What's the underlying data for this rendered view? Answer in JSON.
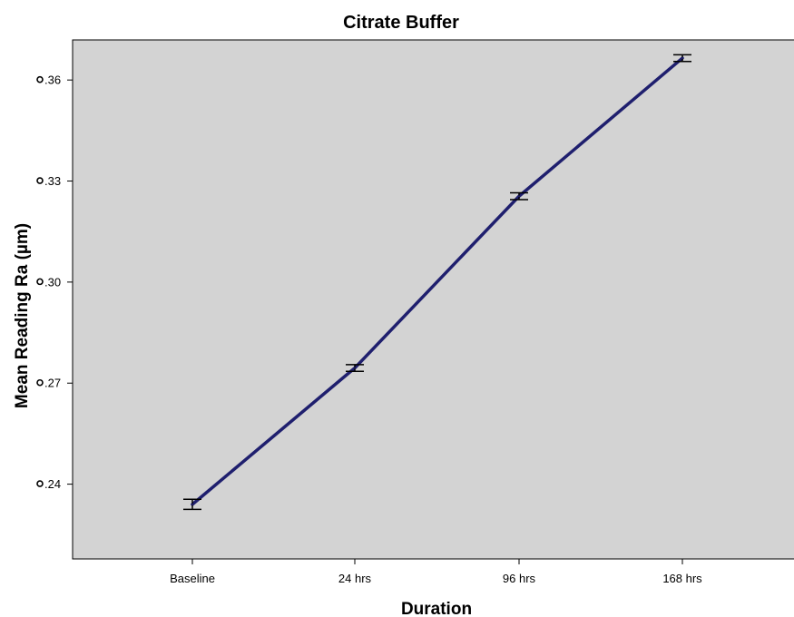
{
  "chart_data": {
    "type": "line",
    "title": "Citrate Buffer",
    "xlabel": "Duration",
    "ylabel": "Mean Reading Ra (µm)",
    "categories": [
      "Baseline",
      "24 hrs",
      "96 hrs",
      "168 hrs"
    ],
    "series": [
      {
        "values": [
          0.234,
          0.2745,
          0.3255,
          0.3665
        ],
        "error_low": [
          0.2325,
          0.2735,
          0.3245,
          0.3655
        ],
        "error_high": [
          0.2355,
          0.2755,
          0.3265,
          0.3675
        ]
      }
    ],
    "yticks": [
      ".24",
      ".27",
      ".30",
      ".33",
      ".36"
    ],
    "ytick_values": [
      0.24,
      0.27,
      0.3,
      0.33,
      0.36
    ],
    "ylim": [
      0.2178,
      0.3719
    ],
    "grid": false,
    "legend": "none",
    "colors": {
      "plot_background": "#d3d3d3",
      "line": "#1f1f6e",
      "error_bar": "#000000",
      "axis": "#000000"
    }
  }
}
